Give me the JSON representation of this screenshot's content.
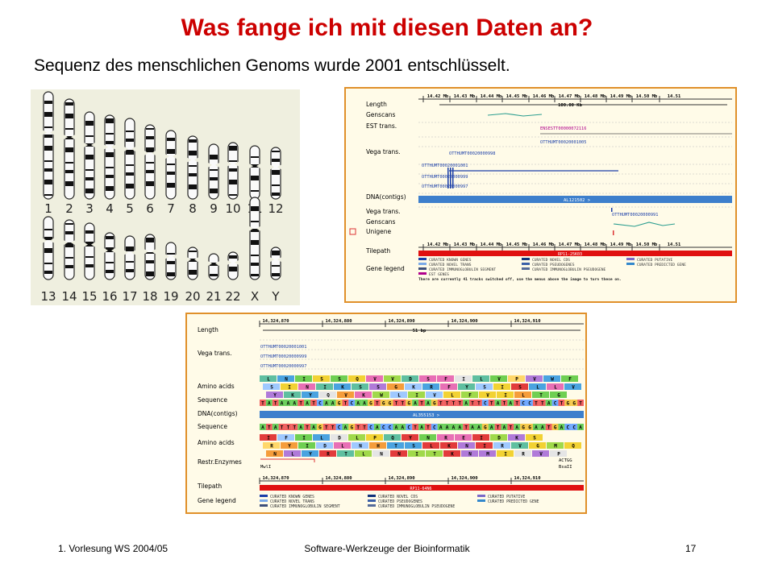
{
  "slide": {
    "title": "Was fange ich mit diesen Daten an?",
    "subtitle": "Sequenz des menschlichen Genoms wurde 2001 entschlüsselt.",
    "footer_left": "1. Vorlesung WS 2004/05",
    "footer_center": "Software-Werkzeuge der Bioinformatik",
    "page_number": "17"
  },
  "colors": {
    "title": "#cc0000",
    "karyotype_bg": "#efefdf",
    "browser_bg": "#fffbe8",
    "frame": "#e0902a",
    "dna_bar": "#3d7fcc",
    "tilepath": "#e01010",
    "track_line": "#2a9d8f"
  },
  "karyotype": {
    "row1": [
      "1",
      "2",
      "3",
      "4",
      "5",
      "6",
      "7",
      "8",
      "9",
      "10",
      "11",
      "12"
    ],
    "row2": [
      "13",
      "14",
      "15",
      "16",
      "17",
      "18",
      "19",
      "20",
      "21",
      "22",
      "X",
      "Y"
    ]
  },
  "overview": {
    "ticks": [
      "14.42 Mb",
      "14.43 Mb",
      "14.44 Mb",
      "14.45 Mb",
      "14.46 Mb",
      "14.47 Mb",
      "14.48 Mb",
      "14.49 Mb",
      "14.50 Mb",
      "14.51"
    ],
    "scale": "100.00 Kb",
    "labels": [
      "Length",
      "Genscans",
      "EST trans.",
      "Vega trans.",
      "DNA(contigs)",
      "Vega trans.",
      "Genscans",
      "Unigene",
      "Tilepath",
      "Gene legend"
    ],
    "features": [
      "ENSESTT00000072116",
      "OTTHUMT00020001005",
      "OTTHUMT00020000998",
      "OTTHUMT00020001001",
      "OTTHUMT00020000999",
      "OTTHUMT00020000997",
      "OTTHUMT00020000991"
    ],
    "contig": "AL121502 >",
    "tilepath": "RP11-25K03",
    "legend": [
      "CURATED KNOWN GENES",
      "CURATED NOVEL CDS",
      "CURATED PUTATIVE",
      "CURATED NOVEL TRANS",
      "CURATED PSEUDOGENES",
      "CURATED PREDICTED GENE",
      "CURATED IMMUNOGLOBULIN SEGMENT",
      "CURATED IMMUNOGLOBULIN PSEUDOGENE",
      "EST GENES"
    ],
    "note": "There are currently 41 tracks switched off, use the menus above the image to turn these on."
  },
  "detail": {
    "ticks": [
      "14,324,870",
      "14,324,880",
      "14,324,890",
      "14,324,900",
      "14,324,910"
    ],
    "scale": "51 bp",
    "labels": [
      "Length",
      "Vega trans.",
      "Amino acids",
      "Sequence",
      "DNA(contigs)",
      "Sequence",
      "Amino acids",
      "Restr.Enzymes",
      "Tilepath",
      "Gene legend"
    ],
    "features": [
      "OTTHUMT00020001001",
      "OTTHUMT00020000999",
      "OTTHUMT00020000997"
    ],
    "aa_top": [
      "L",
      "N",
      "I",
      "S",
      "S",
      "Q",
      "V",
      "V",
      "D",
      "S",
      "F",
      "I",
      "L",
      "V",
      "P",
      "V",
      "W",
      "F"
    ],
    "aa_mid": [
      "S",
      "I",
      "N",
      "I",
      "K",
      "S",
      "S",
      "G",
      "K",
      "R",
      "F",
      "Y",
      "S",
      "I",
      "S",
      "L",
      "L",
      "V"
    ],
    "aa_bot": [
      "Y",
      "K",
      "Y",
      "Q",
      "V",
      "K",
      "W",
      "L",
      "I",
      "V",
      "L",
      "F",
      "V",
      "I",
      "L",
      "T",
      "G"
    ],
    "seq_top": "TATAAATATCAAGTCAAGTGGTTGATAGTTTTATTCTATATCCTTACTGGT",
    "contig": "AL355153 >",
    "seq_bot": "ATATTTATAGTTCAGTTCACCAACTATCAAAATAAGATATAGGAATGACCA",
    "aa_r1": [
      "I",
      "F",
      "I",
      "L",
      "D",
      "L",
      "P",
      "Q",
      "Y",
      "N",
      "R",
      "E",
      "I",
      "D",
      "K",
      "S"
    ],
    "aa_r2": [
      "R",
      "Y",
      "I",
      "D",
      "L",
      "N",
      "H",
      "T",
      "S",
      "L",
      "K",
      "N",
      "I",
      "R",
      "V",
      "G",
      "M",
      "Q",
      "N"
    ],
    "aa_r3": [
      "N",
      "L",
      "Y",
      "R",
      "T",
      "L",
      "N",
      "N",
      "I",
      "T",
      "K",
      "N",
      "M",
      "I",
      "R",
      "V",
      "P",
      "K"
    ],
    "restr_enzymes": [
      "MwlI",
      "ACTGG",
      "BsaII"
    ],
    "tilepath": "RP11-64N6",
    "legend": [
      "CURATED KNOWN GENES",
      "CURATED NOVEL CDS",
      "CURATED PUTATIVE",
      "CURATED NOVEL TRANS",
      "CURATED PSEUDOGENES",
      "CURATED PREDICTED GENE",
      "CURATED IMMUNOGLOBULIN SEGMENT",
      "CURATED IMMUNOGLOBULIN PSEUDOGENE"
    ]
  }
}
